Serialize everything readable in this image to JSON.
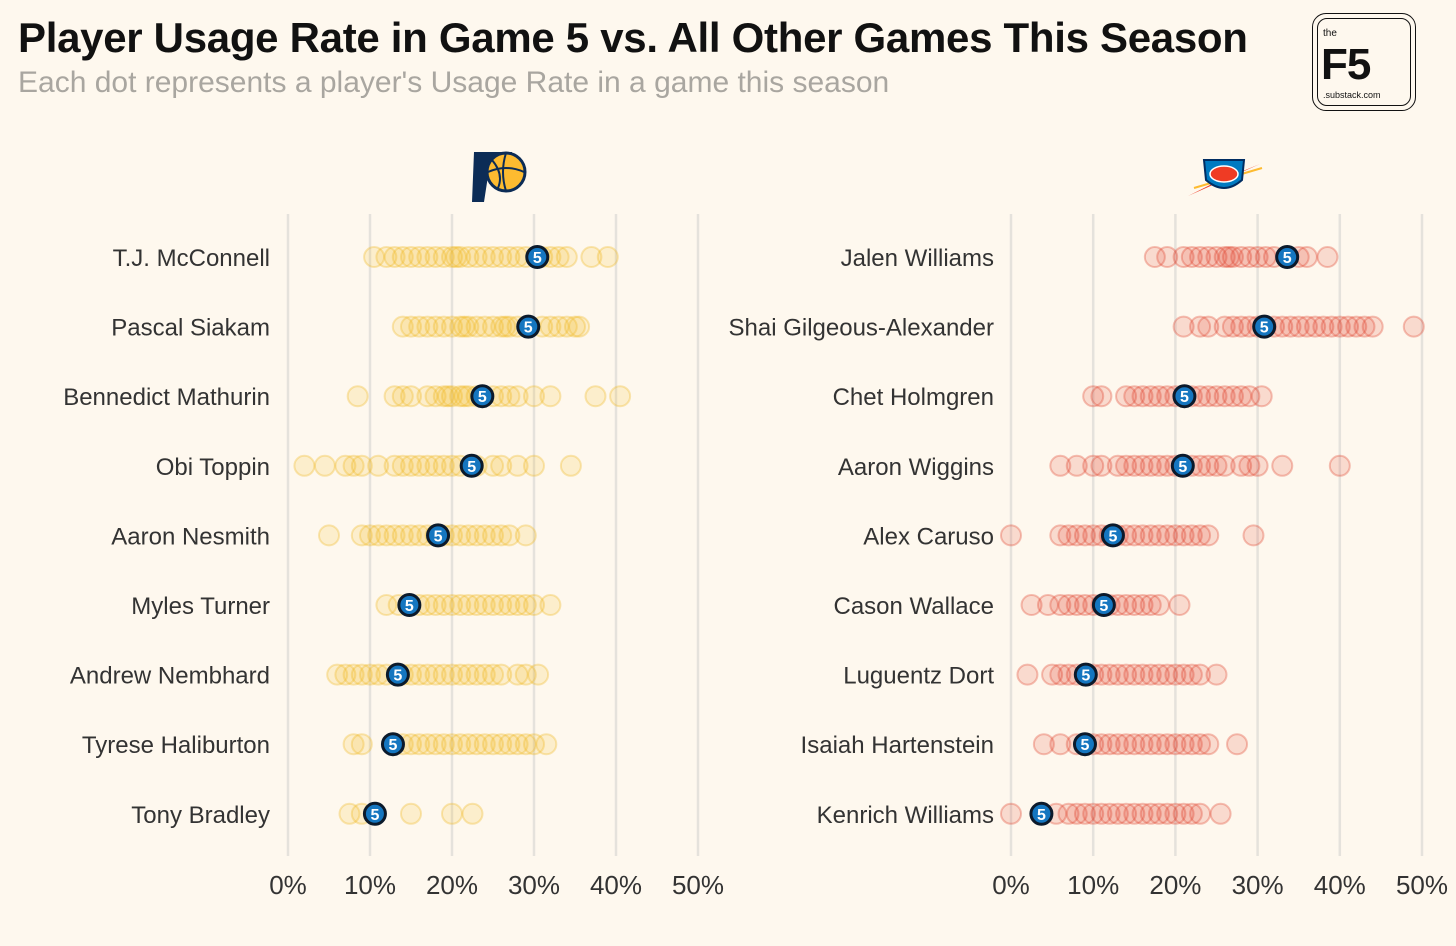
{
  "header": {
    "title": "Player Usage Rate in Game 5 vs. All Other Games This Season",
    "subtitle": "Each dot represents a player's Usage Rate in a game this season"
  },
  "brand": {
    "top": "the",
    "main": "F5",
    "bottom": ".substack.com"
  },
  "marker_label": "5",
  "colors": {
    "background": "#fef8ee",
    "gridline": "#e5e2dc",
    "pacers_dot": "#f0b820",
    "thunder_dot": "#e0412a",
    "game5_fill": "#1576c0",
    "game5_stroke": "#0c1a2b",
    "text": "#333333"
  },
  "chart_data": [
    {
      "type": "scatter",
      "team": "Indiana Pacers",
      "logo_icon": "pacers-logo-icon",
      "x_ticks": [
        "0%",
        "10%",
        "20%",
        "30%",
        "40%",
        "50%"
      ],
      "xlim": [
        0,
        50
      ],
      "players": [
        {
          "name": "T.J. McConnell",
          "game5": 30.4,
          "games": [
            10.5,
            12,
            13,
            14,
            15,
            16,
            17,
            18,
            19,
            20,
            20.5,
            21,
            22,
            23,
            24,
            25,
            26,
            27,
            28,
            29,
            31,
            32,
            33,
            34,
            37,
            39
          ]
        },
        {
          "name": "Pascal Siakam",
          "game5": 29.3,
          "games": [
            14,
            15,
            16,
            17,
            18,
            19,
            20,
            21,
            21.5,
            22,
            23,
            24,
            25,
            26,
            26.5,
            27,
            28,
            29.5,
            31,
            32,
            33,
            34,
            35,
            35.5
          ]
        },
        {
          "name": "Bennedict Mathurin",
          "game5": 23.7,
          "games": [
            8.5,
            13,
            14,
            15,
            17,
            18,
            19,
            19.5,
            20,
            21,
            21.5,
            22,
            23,
            25,
            26,
            27,
            28,
            30,
            32,
            37.5,
            40.5
          ]
        },
        {
          "name": "Obi Toppin",
          "game5": 22.4,
          "games": [
            2,
            4.5,
            7,
            8,
            9,
            11,
            13,
            14,
            15,
            16,
            17,
            18,
            19,
            20,
            21,
            23,
            25,
            26,
            28,
            30,
            34.5
          ]
        },
        {
          "name": "Aaron Nesmith",
          "game5": 18.3,
          "games": [
            5,
            9,
            10,
            11,
            12,
            13,
            14,
            15,
            16,
            17,
            18,
            19,
            20,
            21,
            22,
            23,
            24,
            25,
            26,
            27,
            29
          ]
        },
        {
          "name": "Myles Turner",
          "game5": 14.8,
          "games": [
            12,
            13.5,
            16,
            17,
            18,
            19,
            20,
            21,
            22,
            23,
            24,
            25,
            26,
            27,
            28,
            29,
            30,
            32
          ]
        },
        {
          "name": "Andrew Nembhard",
          "game5": 13.4,
          "games": [
            6,
            7,
            8,
            9,
            10,
            11,
            12,
            14,
            15,
            16,
            17,
            18,
            19,
            20,
            21,
            22,
            23,
            24,
            25,
            26,
            28,
            29,
            30.5
          ]
        },
        {
          "name": "Tyrese Haliburton",
          "game5": 12.8,
          "games": [
            8,
            9,
            14,
            15,
            16,
            17,
            18,
            19,
            20,
            21,
            22,
            23,
            24,
            25,
            26,
            27,
            28,
            29,
            30,
            31.5
          ]
        },
        {
          "name": "Tony Bradley",
          "game5": 10.6,
          "games": [
            7.5,
            9,
            15,
            20,
            22.5
          ]
        }
      ]
    },
    {
      "type": "scatter",
      "team": "Oklahoma City Thunder",
      "logo_icon": "thunder-logo-icon",
      "x_ticks": [
        "0%",
        "10%",
        "20%",
        "30%",
        "40%",
        "50%"
      ],
      "xlim": [
        0,
        50
      ],
      "players": [
        {
          "name": "Jalen Williams",
          "game5": 33.6,
          "games": [
            17.5,
            19,
            21,
            22,
            23,
            24,
            25,
            26,
            26.5,
            27,
            28,
            29,
            30,
            31,
            32,
            35,
            36,
            38.5
          ]
        },
        {
          "name": "Shai Gilgeous-Alexander",
          "game5": 30.8,
          "games": [
            21,
            23,
            24,
            26,
            27,
            28,
            29,
            30,
            31,
            32,
            33,
            34,
            35,
            36,
            37,
            38,
            39,
            40,
            41,
            42,
            43,
            44,
            49
          ]
        },
        {
          "name": "Chet Holmgren",
          "game5": 21.1,
          "games": [
            10,
            11,
            14,
            15,
            16,
            17,
            18,
            19,
            20,
            22,
            23,
            24,
            25,
            26,
            27,
            28,
            29,
            30.5
          ]
        },
        {
          "name": "Aaron Wiggins",
          "game5": 20.9,
          "games": [
            6,
            8,
            10,
            11,
            13,
            14,
            15,
            16,
            17,
            18,
            19,
            20,
            22,
            23,
            24,
            25,
            26,
            28,
            29,
            30,
            33,
            40
          ]
        },
        {
          "name": "Alex Caruso",
          "game5": 12.4,
          "games": [
            0,
            6,
            7,
            8,
            9,
            10,
            11,
            12,
            13,
            14,
            15,
            16,
            17,
            18,
            19,
            20,
            21,
            22,
            23,
            24,
            29.5
          ]
        },
        {
          "name": "Cason Wallace",
          "game5": 11.3,
          "games": [
            2.5,
            4.5,
            6,
            7,
            8,
            9,
            10,
            11,
            12,
            13,
            14,
            15,
            16,
            17,
            18,
            20.5
          ]
        },
        {
          "name": "Luguentz Dort",
          "game5": 9.1,
          "games": [
            2,
            5,
            6,
            7,
            8,
            10,
            11,
            12,
            13,
            14,
            15,
            16,
            17,
            18,
            19,
            20,
            21,
            22,
            23,
            25
          ]
        },
        {
          "name": "Isaiah Hartenstein",
          "game5": 9.0,
          "games": [
            4,
            6,
            8,
            10,
            11,
            12,
            13,
            14,
            15,
            16,
            17,
            18,
            19,
            20,
            21,
            22,
            23,
            24,
            27.5
          ]
        },
        {
          "name": "Kenrich Williams",
          "game5": 3.7,
          "games": [
            0,
            5.5,
            7,
            8,
            9,
            10,
            11,
            12,
            13,
            14,
            15,
            16,
            17,
            18,
            19,
            20,
            21,
            22,
            23,
            25.5
          ]
        }
      ]
    }
  ]
}
